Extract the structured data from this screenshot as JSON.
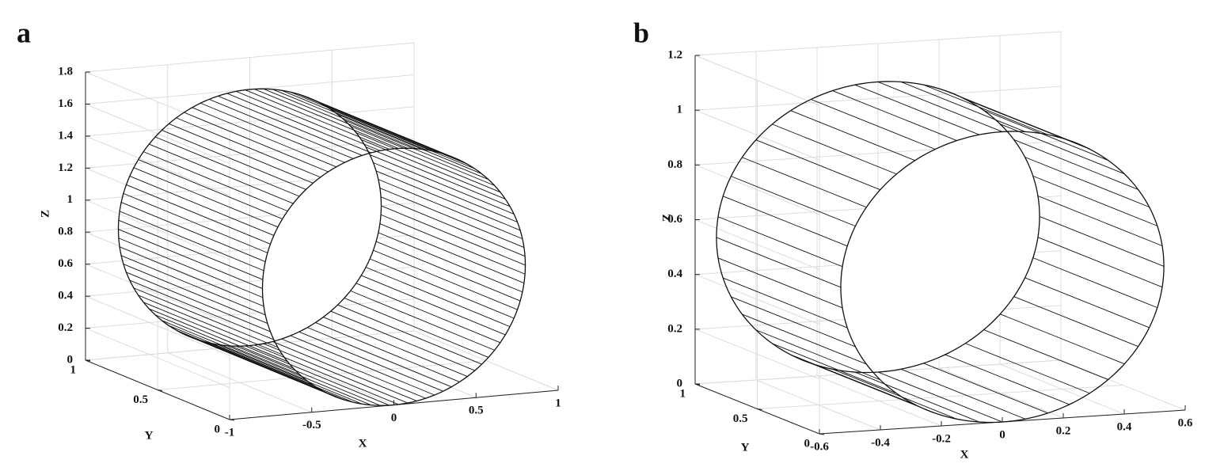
{
  "chart_data": [
    {
      "type": "surface3d",
      "panel": "a",
      "xlabel": "X",
      "ylabel": "Y",
      "zlabel": "Z",
      "xlim": [
        -1,
        1
      ],
      "ylim": [
        0,
        1
      ],
      "zlim": [
        0,
        1.8
      ],
      "xticks": [
        -1,
        -0.5,
        0,
        0.5,
        1
      ],
      "yticks": [
        0,
        0.5,
        1
      ],
      "zticks": [
        0,
        0.2,
        0.4,
        0.6,
        0.8,
        1,
        1.2,
        1.4,
        1.6,
        1.8
      ],
      "grid": true
    },
    {
      "type": "surface3d",
      "panel": "b",
      "xlabel": "X",
      "ylabel": "Y",
      "zlabel": "Z",
      "xlim": [
        -0.6,
        0.6
      ],
      "ylim": [
        0,
        1
      ],
      "zlim": [
        0,
        1.2
      ],
      "xticks": [
        -0.6,
        -0.4,
        -0.2,
        0,
        0.2,
        0.4,
        0.6
      ],
      "yticks": [
        0,
        0.5,
        1
      ],
      "zticks": [
        0,
        0.2,
        0.4,
        0.6,
        0.8,
        1,
        1.2
      ],
      "grid": true
    }
  ]
}
